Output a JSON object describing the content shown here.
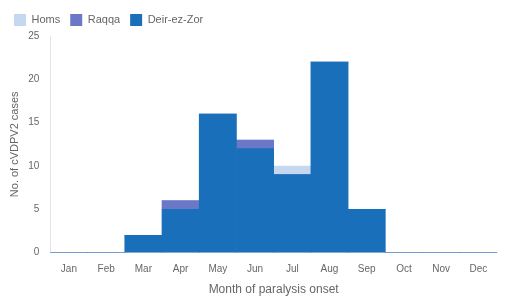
{
  "chart_data": {
    "type": "bar",
    "stacked": true,
    "categories": [
      "Jan",
      "Feb",
      "Mar",
      "Apr",
      "May",
      "Jun",
      "Jul",
      "Aug",
      "Sep",
      "Oct",
      "Nov",
      "Dec"
    ],
    "series": [
      {
        "name": "Deir-ez-Zor",
        "color": "#1a6fba",
        "values": [
          0,
          0,
          2,
          5,
          16,
          12,
          9,
          22,
          5,
          0,
          0,
          0
        ]
      },
      {
        "name": "Raqqa",
        "color": "#6b78c8",
        "values": [
          0,
          0,
          0,
          1,
          0,
          1,
          0,
          0,
          0,
          0,
          0,
          0
        ]
      },
      {
        "name": "Homs",
        "color": "#c5d8f0",
        "values": [
          0,
          0,
          0,
          0,
          0,
          0,
          1,
          0,
          0,
          0,
          0,
          0
        ]
      }
    ],
    "xlabel": "Month of paralysis onset",
    "ylabel": "No. of cVDPV2 cases",
    "ylim": [
      0,
      25
    ],
    "yticks": [
      0,
      5,
      10,
      15,
      20,
      25
    ],
    "grid": false,
    "legend": "upper left"
  }
}
